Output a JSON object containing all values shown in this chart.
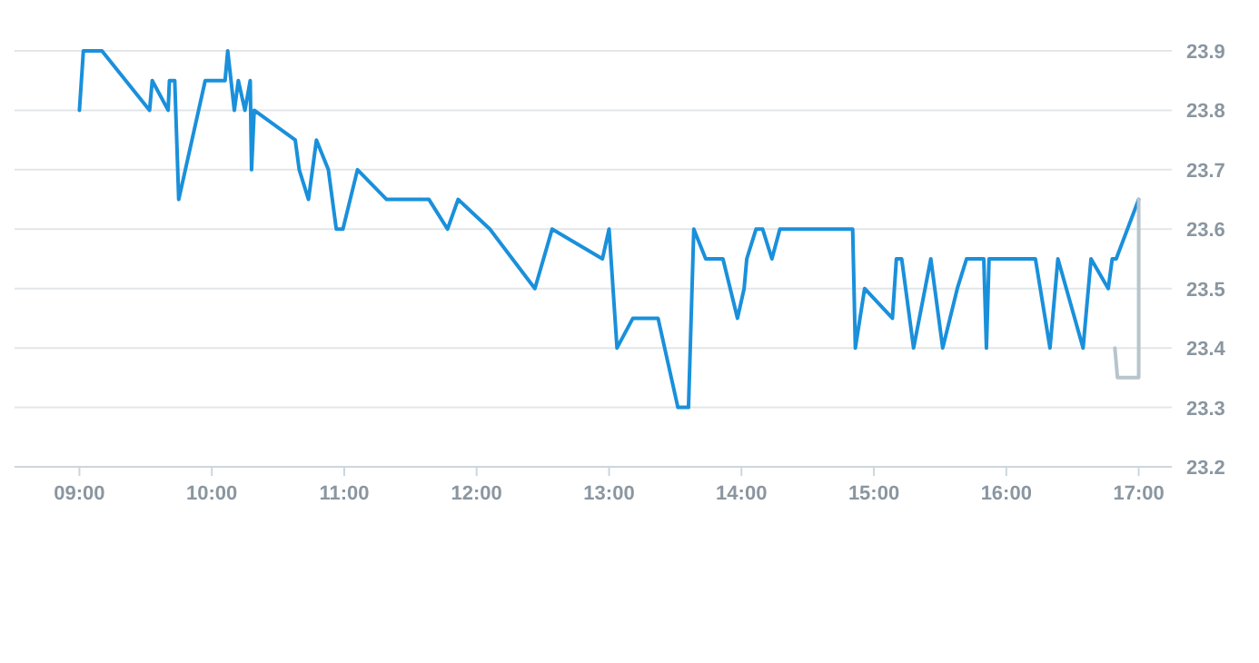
{
  "chart_data": {
    "type": "line",
    "xlim": [
      8.51,
      17.25
    ],
    "ylim": [
      23.2,
      23.9
    ],
    "xticks": [
      {
        "value": 9,
        "label": "09:00"
      },
      {
        "value": 10,
        "label": "10:00"
      },
      {
        "value": 11,
        "label": "11:00"
      },
      {
        "value": 12,
        "label": "12:00"
      },
      {
        "value": 13,
        "label": "13:00"
      },
      {
        "value": 14,
        "label": "14:00"
      },
      {
        "value": 15,
        "label": "15:00"
      },
      {
        "value": 16,
        "label": "16:00"
      },
      {
        "value": 17,
        "label": "17:00"
      }
    ],
    "yticks": [
      23.2,
      23.3,
      23.4,
      23.5,
      23.6,
      23.7,
      23.8,
      23.9
    ],
    "grid": "y",
    "marker": "none",
    "line_style": "solid",
    "series": [
      {
        "color": "#1a90db",
        "x": [
          9.0,
          9.03,
          9.17,
          9.53,
          9.55,
          9.67,
          9.68,
          9.72,
          9.75,
          9.95,
          10.1,
          10.12,
          10.17,
          10.2,
          10.25,
          10.29,
          10.3,
          10.32,
          10.63,
          10.66,
          10.73,
          10.79,
          10.88,
          10.94,
          10.99,
          11.1,
          11.32,
          11.64,
          11.78,
          11.86,
          12.1,
          12.44,
          12.57,
          12.95,
          13.0,
          13.06,
          13.18,
          13.37,
          13.52,
          13.6,
          13.64,
          13.73,
          13.86,
          13.97,
          14.02,
          14.04,
          14.11,
          14.16,
          14.23,
          14.29,
          14.84,
          14.86,
          14.93,
          15.14,
          15.17,
          15.21,
          15.3,
          15.43,
          15.52,
          15.63,
          15.7,
          15.83,
          15.85,
          15.87,
          16.22,
          16.33,
          16.39,
          16.58,
          16.64,
          16.77,
          16.8,
          16.83,
          17.0
        ],
        "values": [
          23.8,
          23.9,
          23.9,
          23.8,
          23.85,
          23.8,
          23.85,
          23.85,
          23.65,
          23.85,
          23.85,
          23.9,
          23.8,
          23.85,
          23.8,
          23.85,
          23.7,
          23.8,
          23.75,
          23.7,
          23.65,
          23.75,
          23.7,
          23.6,
          23.6,
          23.7,
          23.65,
          23.65,
          23.6,
          23.65,
          23.6,
          23.5,
          23.6,
          23.55,
          23.6,
          23.4,
          23.45,
          23.45,
          23.3,
          23.3,
          23.6,
          23.55,
          23.55,
          23.45,
          23.5,
          23.55,
          23.6,
          23.6,
          23.55,
          23.6,
          23.6,
          23.4,
          23.5,
          23.45,
          23.55,
          23.55,
          23.4,
          23.55,
          23.4,
          23.5,
          23.55,
          23.55,
          23.4,
          23.55,
          23.55,
          23.4,
          23.55,
          23.4,
          23.55,
          23.5,
          23.55,
          23.55,
          23.65
        ]
      },
      {
        "color": "#b8c4cc",
        "x": [
          16.82,
          16.84,
          17.0,
          17.0
        ],
        "values": [
          23.4,
          23.35,
          23.35,
          23.65
        ]
      }
    ]
  }
}
